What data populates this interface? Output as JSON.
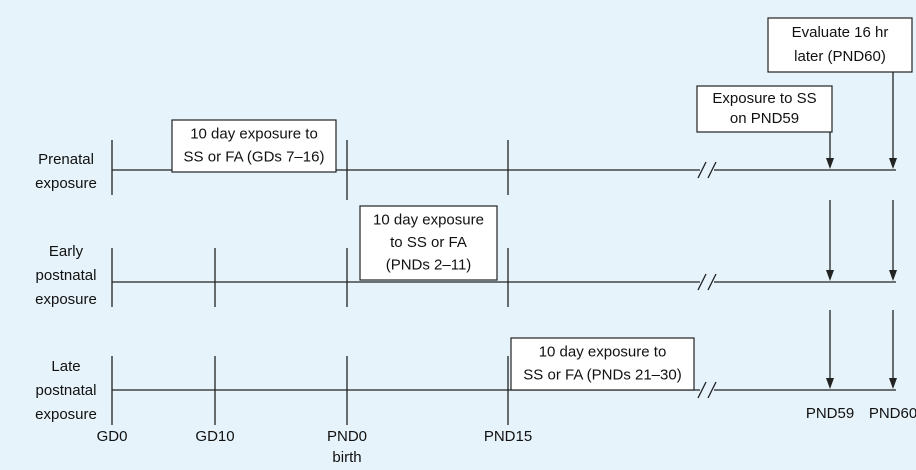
{
  "rows": [
    {
      "label": [
        "Prenatal",
        "exposure"
      ]
    },
    {
      "label": [
        "Early",
        "postnatal",
        "exposure"
      ]
    },
    {
      "label": [
        "Late",
        "postnatal",
        "exposure"
      ]
    }
  ],
  "boxes": [
    {
      "lines": [
        "10 day exposure to",
        "SS or FA (GDs 7–16)"
      ]
    },
    {
      "lines": [
        "10 day exposure",
        "to SS or FA",
        "(PNDs 2–11)"
      ]
    },
    {
      "lines": [
        "10 day exposure to",
        "SS or FA (PNDs 21–30)"
      ]
    },
    {
      "lines": [
        "Exposure to SS",
        "on PND59"
      ]
    },
    {
      "lines": [
        "Evaluate 16 hr",
        "later (PND60)"
      ]
    }
  ],
  "timepoints": [
    "GD0",
    "GD10",
    "PND0",
    "birth",
    "PND15",
    "PND59",
    "PND60"
  ]
}
